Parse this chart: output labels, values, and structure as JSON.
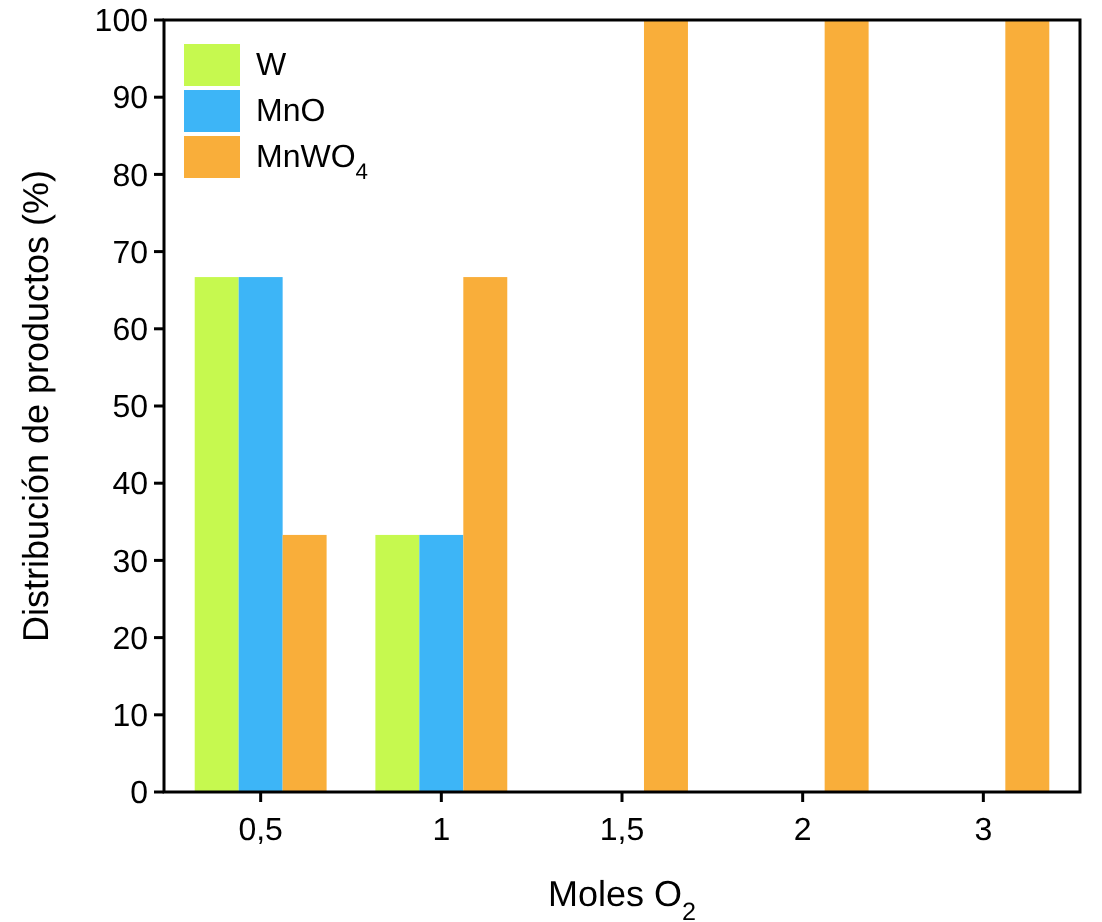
{
  "chart_data": {
    "type": "bar",
    "xlabel": "Moles O$_{2}$",
    "ylabel": "Distribución de productos (%)",
    "categories": [
      "0,5",
      "1",
      "1,5",
      "2",
      "3"
    ],
    "series": [
      {
        "name": "W",
        "color": "#c6f94f",
        "values": [
          66.7,
          33.3,
          0,
          0,
          0
        ]
      },
      {
        "name": "MnO",
        "color": "#3db5f7",
        "values": [
          66.7,
          33.3,
          0,
          0,
          0
        ]
      },
      {
        "name": "MnWO$_{4}$",
        "color": "#f9ae3a",
        "values": [
          33.3,
          66.7,
          100,
          100,
          100
        ]
      }
    ],
    "ylim": [
      0,
      100
    ],
    "yticks": [
      0,
      10,
      20,
      30,
      40,
      50,
      60,
      70,
      80,
      90,
      100
    ],
    "grid": false,
    "legend": "top left"
  }
}
